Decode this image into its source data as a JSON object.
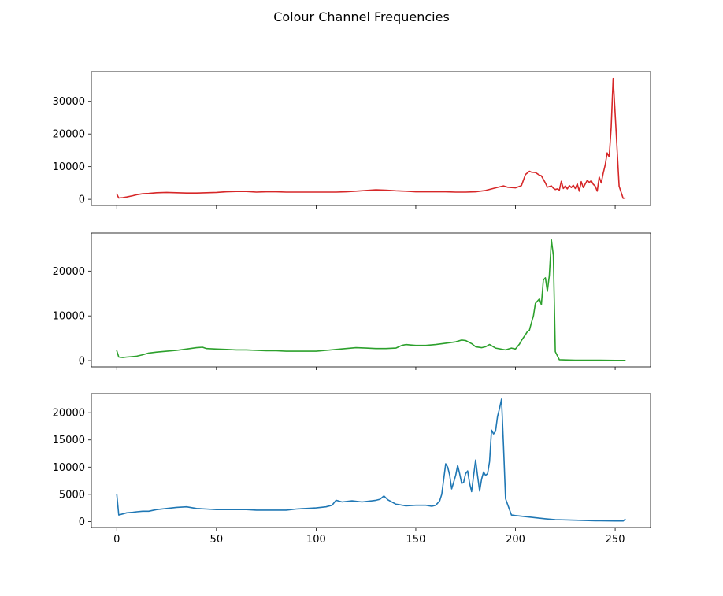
{
  "figure": {
    "title": "Colour Channel Frequencies"
  },
  "chart_data": [
    {
      "type": "line",
      "title": "",
      "xlabel": "",
      "ylabel": "",
      "xlim": [
        -12.75,
        267.75
      ],
      "ylim": [
        -1900,
        39100
      ],
      "xticks": [
        0,
        50,
        100,
        150,
        200,
        250
      ],
      "xtick_labels_visible": false,
      "yticks": [
        0,
        10000,
        20000,
        30000
      ],
      "ytick_labels": [
        "0",
        "10000",
        "20000",
        "30000"
      ],
      "grid": false,
      "legend": "none",
      "series": [
        {
          "color": "#d62728",
          "x": [
            0,
            1,
            3,
            5,
            8,
            10,
            13,
            16,
            20,
            25,
            30,
            35,
            40,
            45,
            50,
            55,
            60,
            65,
            70,
            75,
            80,
            85,
            90,
            95,
            100,
            105,
            110,
            115,
            120,
            125,
            130,
            135,
            140,
            145,
            150,
            155,
            160,
            165,
            170,
            175,
            180,
            185,
            190,
            194,
            196,
            198,
            200,
            203,
            205,
            207,
            208,
            210,
            212,
            213,
            215,
            216,
            218,
            219,
            220,
            221,
            222,
            223,
            224,
            225,
            226,
            227,
            228,
            229,
            230,
            231,
            232,
            233,
            234,
            235,
            236,
            237,
            238,
            239,
            240,
            241,
            242,
            243,
            244,
            245,
            246,
            247,
            248,
            249,
            250,
            252,
            254,
            255
          ],
          "values": [
            1600,
            400,
            500,
            700,
            1100,
            1400,
            1700,
            1800,
            2000,
            2100,
            2000,
            1900,
            1900,
            2000,
            2100,
            2300,
            2400,
            2400,
            2200,
            2300,
            2300,
            2200,
            2200,
            2200,
            2200,
            2200,
            2200,
            2300,
            2500,
            2700,
            2900,
            2800,
            2600,
            2500,
            2300,
            2300,
            2300,
            2300,
            2200,
            2200,
            2300,
            2700,
            3500,
            4100,
            3700,
            3600,
            3500,
            4200,
            7600,
            8600,
            8300,
            8200,
            7400,
            7200,
            5000,
            3700,
            4100,
            3400,
            3000,
            3200,
            2800,
            5500,
            3300,
            4100,
            3200,
            4200,
            3600,
            4300,
            3300,
            4700,
            2500,
            5400,
            3600,
            4700,
            5800,
            5200,
            5700,
            4600,
            4000,
            2500,
            6800,
            5000,
            8000,
            10500,
            14200,
            13000,
            22000,
            37000,
            26000,
            4000,
            300,
            400
          ],
          "x_is_sparse_note": ""
        }
      ]
    },
    {
      "type": "line",
      "title": "",
      "xlabel": "",
      "ylabel": "",
      "xlim": [
        -12.75,
        267.75
      ],
      "ylim": [
        -1400,
        28500
      ],
      "xticks": [
        0,
        50,
        100,
        150,
        200,
        250
      ],
      "xtick_labels_visible": false,
      "yticks": [
        0,
        10000,
        20000
      ],
      "ytick_labels": [
        "0",
        "10000",
        "20000"
      ],
      "grid": false,
      "legend": "none",
      "series": [
        {
          "color": "#2ca02c",
          "x": [
            0,
            1,
            3,
            5,
            8,
            10,
            13,
            16,
            20,
            25,
            30,
            35,
            40,
            43,
            45,
            50,
            55,
            60,
            65,
            70,
            75,
            80,
            85,
            90,
            95,
            100,
            105,
            110,
            115,
            120,
            125,
            130,
            135,
            140,
            143,
            145,
            147,
            150,
            155,
            160,
            165,
            170,
            173,
            175,
            178,
            180,
            183,
            185,
            187,
            190,
            195,
            198,
            200,
            202,
            203,
            205,
            206,
            207,
            208,
            209,
            210,
            211,
            212,
            213,
            214,
            215,
            216,
            217,
            218,
            219,
            220,
            222,
            225,
            230,
            240,
            250,
            255
          ],
          "values": [
            2200,
            800,
            700,
            800,
            900,
            1000,
            1300,
            1700,
            1900,
            2100,
            2300,
            2600,
            2900,
            3000,
            2700,
            2600,
            2500,
            2400,
            2400,
            2300,
            2200,
            2200,
            2100,
            2100,
            2100,
            2100,
            2300,
            2500,
            2700,
            2900,
            2800,
            2700,
            2700,
            2800,
            3400,
            3600,
            3500,
            3400,
            3400,
            3600,
            3900,
            4200,
            4600,
            4500,
            3800,
            3100,
            2900,
            3100,
            3600,
            2800,
            2400,
            2800,
            2600,
            3700,
            4500,
            5800,
            6500,
            6800,
            8500,
            10000,
            12800,
            13300,
            13800,
            12500,
            18000,
            18500,
            15500,
            19000,
            27000,
            23500,
            2000,
            200,
            150,
            100,
            100,
            50,
            50
          ]
        }
      ]
    },
    {
      "type": "line",
      "title": "",
      "xlabel": "",
      "ylabel": "",
      "xlim": [
        -12.75,
        267.75
      ],
      "ylim": [
        -1100,
        23500
      ],
      "xticks": [
        0,
        50,
        100,
        150,
        200,
        250
      ],
      "xtick_labels": [
        "0",
        "50",
        "100",
        "150",
        "200",
        "250"
      ],
      "yticks": [
        0,
        5000,
        10000,
        15000,
        20000
      ],
      "ytick_labels": [
        "0",
        "5000",
        "10000",
        "15000",
        "20000"
      ],
      "grid": false,
      "legend": "none",
      "series": [
        {
          "color": "#1f77b4",
          "x": [
            0,
            1,
            3,
            5,
            8,
            10,
            13,
            16,
            20,
            25,
            30,
            35,
            40,
            45,
            50,
            55,
            60,
            65,
            70,
            75,
            80,
            85,
            90,
            95,
            100,
            105,
            108,
            110,
            113,
            118,
            123,
            128,
            130,
            132,
            134,
            136,
            140,
            145,
            150,
            155,
            158,
            160,
            162,
            163,
            164,
            165,
            166,
            167,
            168,
            169,
            170,
            171,
            172,
            173,
            174,
            175,
            176,
            177,
            178,
            179,
            180,
            181,
            182,
            183,
            184,
            185,
            186,
            187,
            188,
            189,
            190,
            191,
            192,
            193,
            194,
            195,
            198,
            200,
            205,
            210,
            215,
            220,
            230,
            240,
            250,
            254,
            255
          ],
          "values": [
            5000,
            1200,
            1400,
            1600,
            1700,
            1800,
            1900,
            1900,
            2200,
            2400,
            2600,
            2700,
            2400,
            2300,
            2200,
            2200,
            2200,
            2200,
            2100,
            2100,
            2100,
            2100,
            2300,
            2400,
            2500,
            2700,
            3000,
            3900,
            3600,
            3800,
            3600,
            3800,
            3900,
            4100,
            4700,
            4000,
            3200,
            2900,
            3000,
            3000,
            2800,
            3000,
            3800,
            5000,
            7800,
            10600,
            10000,
            8500,
            6000,
            7200,
            8500,
            10300,
            8800,
            7000,
            7200,
            8800,
            9300,
            7000,
            5500,
            8500,
            11300,
            8400,
            5600,
            7800,
            9100,
            8500,
            8800,
            11000,
            16800,
            16100,
            16600,
            19300,
            20800,
            22500,
            14000,
            4200,
            1200,
            1100,
            900,
            700,
            500,
            350,
            250,
            150,
            100,
            100,
            400
          ]
        }
      ]
    }
  ]
}
